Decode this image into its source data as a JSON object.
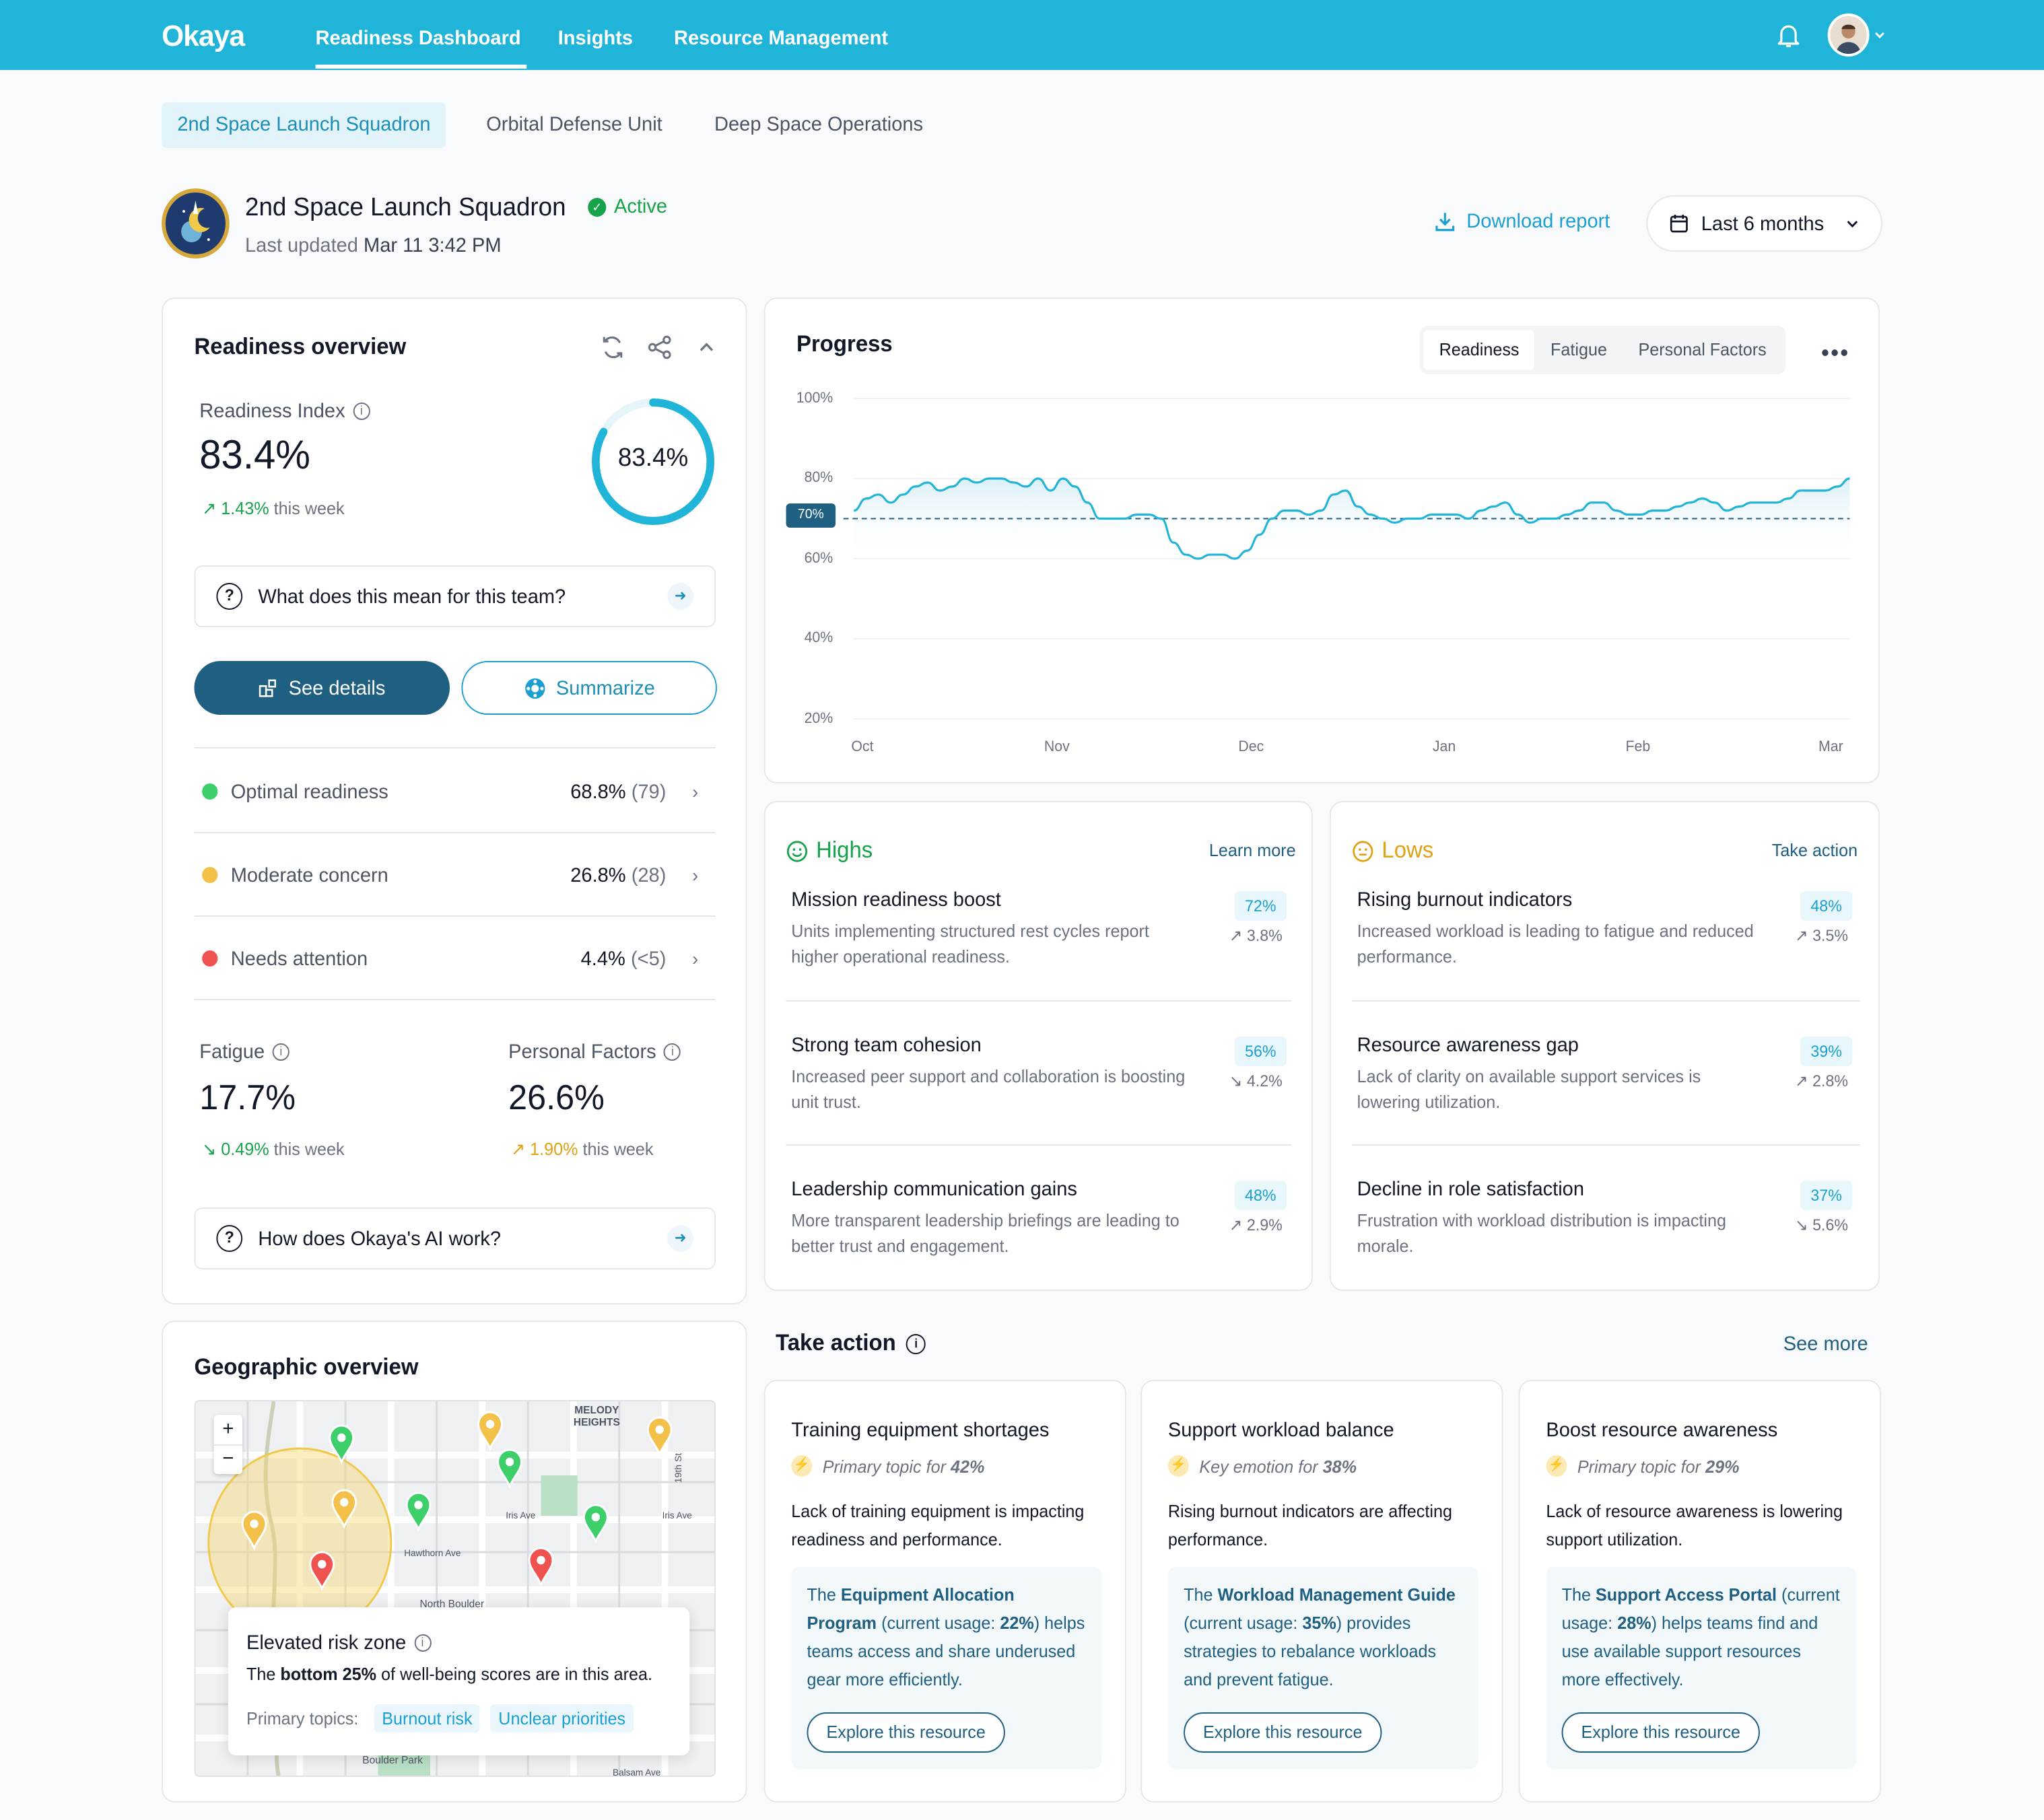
{
  "app": {
    "logo": "Okaya"
  },
  "nav": {
    "items": [
      "Readiness Dashboard",
      "Insights",
      "Resource Management"
    ],
    "active": "Readiness Dashboard"
  },
  "unit_tabs": [
    "2nd Space Launch Squadron",
    "Orbital Defense Unit",
    "Deep Space Operations"
  ],
  "header": {
    "title": "2nd Space Launch Squadron",
    "status": "Active",
    "updated_prefix": "Last updated",
    "updated_value": "Mar 11 3:42 PM",
    "download": "Download report",
    "range": "Last 6 months"
  },
  "readiness": {
    "title": "Readiness overview",
    "index_label": "Readiness Index",
    "index_value": "83.4%",
    "ring_value": "83.4%",
    "ring_fraction": 0.834,
    "delta_value": "1.43%",
    "delta_suffix": "this week",
    "question": "What does this mean for this team?",
    "see_details": "See details",
    "summarize": "Summarize",
    "rows": [
      {
        "label": "Optimal readiness",
        "value": "68.8%",
        "count": "(79)",
        "color": "#3ccf6a"
      },
      {
        "label": "Moderate concern",
        "value": "26.8%",
        "count": "(28)",
        "color": "#f3c04a"
      },
      {
        "label": "Needs attention",
        "value": "4.4%",
        "count": "(<5)",
        "color": "#ef5350"
      }
    ],
    "fatigue": {
      "label": "Fatigue",
      "value": "17.7%",
      "delta": "0.49%",
      "suffix": "this week"
    },
    "personal": {
      "label": "Personal Factors",
      "value": "26.6%",
      "delta": "1.90%",
      "suffix": "this week"
    },
    "ai_question": "How does Okaya's AI work?"
  },
  "progress": {
    "title": "Progress",
    "tabs": [
      "Readiness",
      "Fatigue",
      "Personal Factors"
    ],
    "active_tab": "Readiness"
  },
  "chart_data": {
    "type": "line",
    "title": "Progress",
    "xlabel": "",
    "ylabel": "",
    "x_ticks": [
      "Oct",
      "Nov",
      "Dec",
      "Jan",
      "Feb",
      "Mar"
    ],
    "y_ticks": [
      "100%",
      "80%",
      "60%",
      "40%",
      "20%"
    ],
    "ylim": [
      20,
      100
    ],
    "threshold": {
      "value": 70,
      "label": "70%"
    },
    "series": [
      {
        "values": [
          72,
          75,
          76,
          74,
          76,
          78,
          79,
          77,
          78,
          80,
          79,
          80,
          80,
          79,
          78,
          80,
          77,
          80,
          78,
          74,
          70,
          70,
          70,
          71,
          71,
          70,
          64,
          61,
          60,
          61,
          61,
          60,
          62,
          66,
          70,
          72,
          72,
          71,
          72,
          76,
          77,
          73,
          71,
          70,
          69,
          70,
          70,
          71,
          71,
          71,
          70,
          72,
          73,
          74,
          71,
          69,
          70,
          70,
          71,
          72,
          74,
          74,
          72,
          71,
          71,
          72,
          72,
          73,
          74,
          75,
          74,
          72,
          73,
          74,
          74,
          74,
          75,
          77,
          77,
          77,
          78,
          80
        ]
      }
    ]
  },
  "highs": {
    "title": "Highs",
    "link": "Learn more",
    "items": [
      {
        "title": "Mission readiness boost",
        "desc": "Units implementing structured rest cycles report higher operational readiness.",
        "pct": "72%",
        "change": "3.8%",
        "dir": "up"
      },
      {
        "title": "Strong team cohesion",
        "desc": "Increased peer support and collaboration is boosting unit trust.",
        "pct": "56%",
        "change": "4.2%",
        "dir": "down"
      },
      {
        "title": "Leadership communication gains",
        "desc": "More transparent leadership briefings are leading to better trust and engagement.",
        "pct": "48%",
        "change": "2.9%",
        "dir": "up"
      }
    ]
  },
  "lows": {
    "title": "Lows",
    "link": "Take action",
    "items": [
      {
        "title": "Rising burnout indicators",
        "desc": "Increased workload is leading to fatigue and reduced performance.",
        "pct": "48%",
        "change": "3.5%",
        "dir": "up"
      },
      {
        "title": "Resource awareness gap",
        "desc": "Lack of clarity on available support services is lowering utilization.",
        "pct": "39%",
        "change": "2.8%",
        "dir": "up"
      },
      {
        "title": "Decline in role satisfaction",
        "desc": "Frustration with workload distribution is impacting morale.",
        "pct": "37%",
        "change": "5.6%",
        "dir": "down"
      }
    ]
  },
  "geo": {
    "title": "Geographic overview",
    "map_labels": {
      "melody": "MELODY",
      "heights": "HEIGHTS",
      "iris1": "Iris Ave",
      "iris2": "Iris Ave",
      "hawthorn": "Hawthorn Ave",
      "north": "North Boulder",
      "park": "Boulder Park",
      "st19": "19th St",
      "balsam": "Balsam Ave"
    },
    "popup_title": "Elevated risk zone",
    "popup_pre": "The",
    "popup_bold": "bottom 25%",
    "popup_post": "of well-being scores are in this area.",
    "topics_label": "Primary topics:",
    "topics": [
      "Burnout risk",
      "Unclear priorities"
    ],
    "zoom_in": "+",
    "zoom_out": "−"
  },
  "take_action": {
    "title": "Take action",
    "see_more": "See more",
    "cards": [
      {
        "title": "Training equipment shortages",
        "sub_pre": "Primary topic for",
        "sub_pct": "42%",
        "desc": "Lack of training equipment is impacting readiness and performance.",
        "box_pre": "The",
        "box_bold": "Equipment Allocation Program",
        "box_mid": "(current usage:",
        "box_usage": "22%",
        "box_post": ") helps teams access and share underused gear more efficiently.",
        "button": "Explore this resource"
      },
      {
        "title": "Support workload balance",
        "sub_pre": "Key emotion for",
        "sub_pct": "38%",
        "desc": "Rising burnout indicators are affecting performance.",
        "box_pre": "The",
        "box_bold": "Workload Management Guide",
        "box_mid": "(current usage:",
        "box_usage": "35%",
        "box_post": ") provides strategies to rebalance workloads and prevent fatigue.",
        "button": "Explore this resource"
      },
      {
        "title": "Boost resource awareness",
        "sub_pre": "Primary topic for",
        "sub_pct": "29%",
        "desc": "Lack of resource awareness is lowering support utilization.",
        "box_pre": "The",
        "box_bold": "Support Access Portal",
        "box_mid": "(current usage:",
        "box_usage": "28%",
        "box_post": ") helps teams find and use available support resources more effectively.",
        "button": "Explore this resource"
      }
    ]
  }
}
